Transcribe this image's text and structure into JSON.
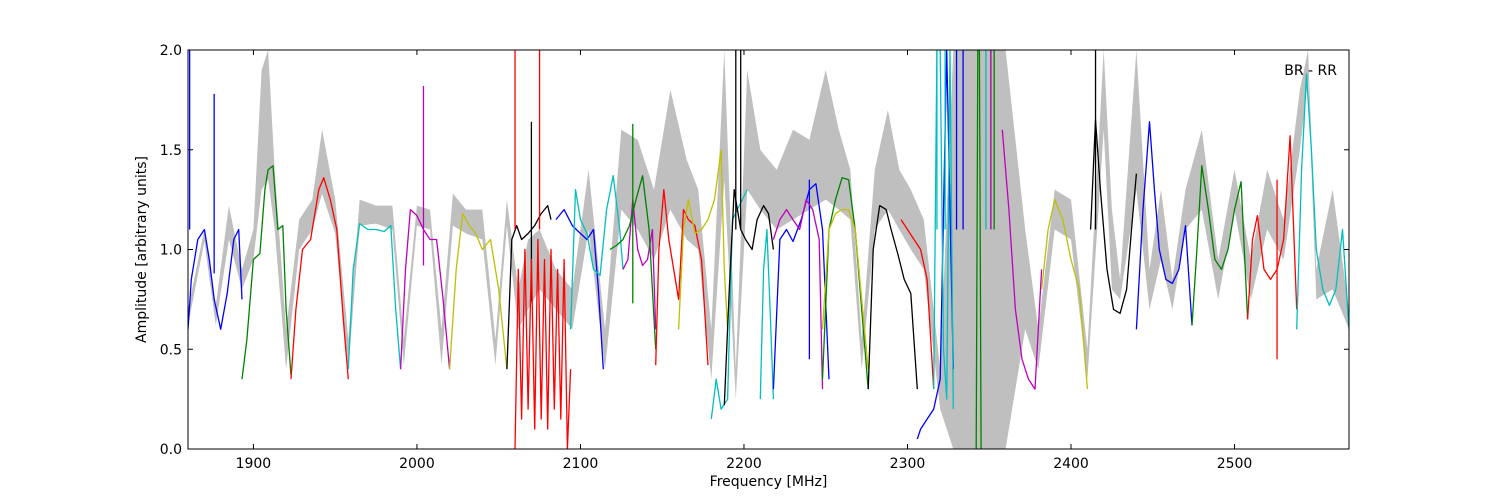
{
  "chart_data": {
    "type": "line",
    "title": "",
    "xlabel": "Frequency [MHz]",
    "ylabel": "Amplitude [arbitrary units]",
    "xlim": [
      1860,
      2570
    ],
    "ylim": [
      0.0,
      2.0
    ],
    "xticks": [
      1900,
      2000,
      2100,
      2200,
      2300,
      2400,
      2500
    ],
    "xtick_labels": [
      "1900",
      "2000",
      "2100",
      "2200",
      "2300",
      "2400",
      "2500"
    ],
    "yticks": [
      0.0,
      0.5,
      1.0,
      1.5,
      2.0
    ],
    "ytick_labels": [
      "0.0",
      "0.5",
      "1.0",
      "1.5",
      "2.0"
    ],
    "grid": false,
    "annotation": "BR - RR",
    "band_color": "#bfbfbf",
    "band": {
      "x": [
        1860,
        1870,
        1877,
        1885,
        1893,
        1900,
        1905,
        1909,
        1913,
        1920,
        1928,
        1936,
        1942,
        1950,
        1958,
        1965,
        1975,
        1985,
        1992,
        2000,
        2008,
        2015,
        2022,
        2030,
        2040,
        2048,
        2055,
        2062,
        2068,
        2075,
        2085,
        2095,
        2105,
        2115,
        2125,
        2135,
        2145,
        2155,
        2165,
        2172,
        2180,
        2188,
        2195,
        2202,
        2210,
        2220,
        2230,
        2240,
        2250,
        2258,
        2265,
        2272,
        2280,
        2288,
        2295,
        2302,
        2310,
        2320,
        2328,
        2340,
        2360,
        2372,
        2380,
        2390,
        2400,
        2410,
        2420,
        2425,
        2430,
        2440,
        2448,
        2455,
        2462,
        2470,
        2480,
        2490,
        2500,
        2510,
        2520,
        2530,
        2540,
        2545,
        2550,
        2560,
        2570
      ],
      "low": [
        0.62,
        1.04,
        0.62,
        1.05,
        0.8,
        0.95,
        1.3,
        1.35,
        1.1,
        0.4,
        1.0,
        1.1,
        1.28,
        1.08,
        0.4,
        1.12,
        1.13,
        1.1,
        0.42,
        1.12,
        1.1,
        0.42,
        1.12,
        1.08,
        1.05,
        0.42,
        1.12,
        0.6,
        0.7,
        0.8,
        0.7,
        0.6,
        1.1,
        0.4,
        1.2,
        1.1,
        0.95,
        1.2,
        1.05,
        1.0,
        0.35,
        1.35,
        0.25,
        1.3,
        1.2,
        1.1,
        1.15,
        1.2,
        1.25,
        1.2,
        1.15,
        0.4,
        1.1,
        1.2,
        1.1,
        1.0,
        0.9,
        0.2,
        0.0,
        0.0,
        0.0,
        0.6,
        0.4,
        1.1,
        1.05,
        0.35,
        1.6,
        0.8,
        0.75,
        1.3,
        0.7,
        0.95,
        0.7,
        1.1,
        1.2,
        0.75,
        1.2,
        0.75,
        1.1,
        0.95,
        1.5,
        1.85,
        0.75,
        0.8,
        0.6
      ],
      "high": [
        0.7,
        1.1,
        0.72,
        1.22,
        0.9,
        1.1,
        1.9,
        2.0,
        1.4,
        0.6,
        1.15,
        1.25,
        1.6,
        1.25,
        0.55,
        1.25,
        1.22,
        1.22,
        0.55,
        1.22,
        1.2,
        0.6,
        1.28,
        1.2,
        1.2,
        0.55,
        1.25,
        0.8,
        1.05,
        1.1,
        0.9,
        0.8,
        1.4,
        0.6,
        1.6,
        1.55,
        1.3,
        1.8,
        1.45,
        1.3,
        0.6,
        2.0,
        0.4,
        1.9,
        1.5,
        1.4,
        1.6,
        1.55,
        1.9,
        1.6,
        1.4,
        0.55,
        1.4,
        1.7,
        1.4,
        1.3,
        1.15,
        0.4,
        2.0,
        2.0,
        2.0,
        1.1,
        0.6,
        1.3,
        1.25,
        0.5,
        2.0,
        1.2,
        0.85,
        2.0,
        0.9,
        1.3,
        0.85,
        1.3,
        1.6,
        0.95,
        1.4,
        0.95,
        1.4,
        1.15,
        1.8,
        2.0,
        0.9,
        1.3,
        0.7
      ]
    },
    "series": [
      {
        "color": "#0000ff",
        "x": [
          1860,
          1862,
          1866,
          1870,
          1873,
          1876,
          1880,
          1884,
          1888,
          1891,
          1893
        ],
        "y": [
          0.6,
          0.85,
          1.05,
          1.1,
          0.95,
          0.75,
          0.6,
          0.78,
          1.05,
          1.1,
          0.75
        ],
        "spikes": [
          [
            1876,
            1.78
          ],
          [
            1861,
            2.0
          ]
        ]
      },
      {
        "color": "#008000",
        "x": [
          1893,
          1896,
          1900,
          1904,
          1907,
          1909,
          1912,
          1915,
          1918,
          1920,
          1923
        ],
        "y": [
          0.35,
          0.55,
          0.95,
          0.98,
          1.3,
          1.4,
          1.42,
          1.1,
          1.12,
          0.7,
          0.37
        ],
        "spikes": []
      },
      {
        "color": "#ff0000",
        "x": [
          1923,
          1926,
          1930,
          1935,
          1940,
          1943,
          1947,
          1951,
          1955,
          1958
        ],
        "y": [
          0.35,
          0.7,
          1.0,
          1.05,
          1.3,
          1.36,
          1.25,
          1.1,
          0.65,
          0.35
        ],
        "spikes": []
      },
      {
        "color": "#00bfbf",
        "x": [
          1958,
          1961,
          1965,
          1970,
          1975,
          1980,
          1984,
          1987,
          1990
        ],
        "y": [
          0.4,
          0.9,
          1.13,
          1.1,
          1.1,
          1.09,
          1.12,
          0.7,
          0.4
        ],
        "spikes": []
      },
      {
        "color": "#bf00bf",
        "x": [
          1990,
          1993,
          1996,
          2000,
          2004,
          2008,
          2012,
          2016,
          2020
        ],
        "y": [
          0.4,
          0.9,
          1.2,
          1.17,
          1.1,
          1.05,
          1.05,
          0.75,
          0.4
        ],
        "spikes": [
          [
            2004,
            1.82
          ]
        ]
      },
      {
        "color": "#bfbf00",
        "x": [
          2020,
          2024,
          2028,
          2032,
          2036,
          2040,
          2045,
          2050,
          2055
        ],
        "y": [
          0.4,
          0.9,
          1.18,
          1.12,
          1.08,
          1.0,
          1.05,
          0.8,
          0.4
        ],
        "spikes": []
      },
      {
        "color": "#000000",
        "x": [
          2055,
          2058,
          2061,
          2064,
          2068,
          2072,
          2076,
          2080,
          2082
        ],
        "y": [
          0.4,
          1.05,
          1.12,
          1.05,
          1.08,
          1.12,
          1.18,
          1.22,
          1.15
        ],
        "spikes": [
          [
            2070,
            1.64
          ]
        ]
      },
      {
        "color": "#ff0000",
        "x": [
          2060,
          2062,
          2064,
          2066,
          2068,
          2070,
          2072,
          2074,
          2076,
          2078,
          2080,
          2082,
          2084,
          2086,
          2088,
          2090,
          2092,
          2094
        ],
        "y": [
          0.0,
          0.9,
          0.15,
          1.0,
          0.2,
          0.95,
          0.1,
          1.05,
          0.15,
          0.95,
          0.1,
          1.0,
          0.2,
          0.9,
          0.15,
          0.95,
          0.0,
          0.4
        ],
        "spikes": [
          [
            2060,
            2.0
          ],
          [
            2075,
            2.0
          ]
        ]
      },
      {
        "color": "#0000ff",
        "x": [
          2085,
          2090,
          2095,
          2100,
          2104,
          2108,
          2111,
          2114
        ],
        "y": [
          1.15,
          1.2,
          1.12,
          1.08,
          1.05,
          1.1,
          0.8,
          0.4
        ],
        "spikes": []
      },
      {
        "color": "#00bfbf",
        "x": [
          2094,
          2097,
          2100,
          2104,
          2108,
          2112,
          2116,
          2120,
          2124,
          2126
        ],
        "y": [
          0.6,
          1.3,
          1.15,
          1.08,
          0.9,
          0.87,
          1.2,
          1.37,
          1.1,
          0.9
        ],
        "spikes": []
      },
      {
        "color": "#bf00bf",
        "x": [
          2126,
          2129,
          2132,
          2135,
          2138,
          2141,
          2144,
          2146
        ],
        "y": [
          0.9,
          0.95,
          1.25,
          1.0,
          0.92,
          0.95,
          1.1,
          0.6
        ],
        "spikes": []
      },
      {
        "color": "#008000",
        "x": [
          2118,
          2122,
          2126,
          2130,
          2134,
          2138,
          2142,
          2146
        ],
        "y": [
          1.0,
          1.02,
          1.05,
          1.12,
          1.25,
          1.37,
          1.1,
          0.5
        ],
        "spikes": [
          [
            2132,
            1.63
          ]
        ]
      },
      {
        "color": "#ff0000",
        "x": [
          2146,
          2148,
          2151,
          2154,
          2157,
          2160,
          2163,
          2166,
          2170,
          2174,
          2178
        ],
        "y": [
          0.42,
          1.0,
          1.3,
          1.05,
          0.9,
          0.75,
          1.2,
          1.15,
          1.12,
          0.95,
          0.42
        ],
        "spikes": []
      },
      {
        "color": "#bfbf00",
        "x": [
          2160,
          2163,
          2166,
          2170,
          2174,
          2178,
          2182,
          2186,
          2188,
          2190
        ],
        "y": [
          0.6,
          1.1,
          1.25,
          1.08,
          1.1,
          1.15,
          1.25,
          1.5,
          0.9,
          0.6
        ],
        "spikes": []
      },
      {
        "color": "#00bfbf",
        "x": [
          2180,
          2183,
          2186,
          2190,
          2193,
          2196,
          2199,
          2202
        ],
        "y": [
          0.15,
          0.35,
          0.2,
          0.25,
          1.15,
          1.2,
          1.25,
          1.3
        ],
        "spikes": []
      },
      {
        "color": "#000000",
        "x": [
          2188,
          2191,
          2194,
          2196,
          2198,
          2201,
          2205,
          2208,
          2212,
          2215,
          2218
        ],
        "y": [
          0.22,
          0.8,
          1.3,
          1.2,
          1.1,
          1.05,
          1.0,
          1.15,
          1.22,
          1.18,
          1.0
        ],
        "spikes": [
          [
            2195,
            2.0
          ],
          [
            2198,
            2.0
          ]
        ]
      },
      {
        "color": "#00bfbf",
        "x": [
          2210,
          2212,
          2214,
          2216,
          2218
        ],
        "y": [
          0.25,
          0.9,
          1.1,
          0.7,
          0.25
        ],
        "spikes": []
      },
      {
        "color": "#0000ff",
        "x": [
          2218,
          2222,
          2226,
          2230,
          2235,
          2240,
          2244,
          2248,
          2252
        ],
        "y": [
          0.3,
          1.05,
          1.1,
          1.04,
          1.15,
          1.3,
          1.33,
          1.1,
          0.35
        ],
        "spikes": [
          [
            2240,
            1.35
          ]
        ]
      },
      {
        "color": "#bf00bf",
        "x": [
          2218,
          2222,
          2226,
          2230,
          2234,
          2238,
          2242,
          2246,
          2248
        ],
        "y": [
          1.05,
          1.15,
          1.2,
          1.15,
          1.1,
          1.25,
          1.2,
          1.05,
          0.3
        ],
        "spikes": []
      },
      {
        "color": "#008000",
        "x": [
          2248,
          2252,
          2256,
          2260,
          2264,
          2268,
          2272,
          2276
        ],
        "y": [
          0.35,
          1.1,
          1.25,
          1.36,
          1.35,
          1.1,
          0.7,
          0.3
        ],
        "spikes": []
      },
      {
        "color": "#bfbf00",
        "x": [
          2248,
          2252,
          2256,
          2260,
          2264,
          2268,
          2272,
          2276
        ],
        "y": [
          0.6,
          1.1,
          1.18,
          1.2,
          1.2,
          1.1,
          0.75,
          0.4
        ],
        "spikes": []
      },
      {
        "color": "#000000",
        "x": [
          2276,
          2279,
          2283,
          2287,
          2290,
          2294,
          2298,
          2302,
          2306
        ],
        "y": [
          0.3,
          1.0,
          1.22,
          1.2,
          1.1,
          0.98,
          0.85,
          0.78,
          0.3
        ],
        "spikes": []
      },
      {
        "color": "#ff0000",
        "x": [
          2296,
          2300,
          2304,
          2308,
          2312,
          2316
        ],
        "y": [
          1.15,
          1.1,
          1.05,
          1.0,
          0.85,
          0.3
        ],
        "spikes": []
      },
      {
        "color": "#0000ff",
        "x": [
          2306,
          2308,
          2312,
          2316,
          2320,
          2324,
          2328
        ],
        "y": [
          0.05,
          0.1,
          0.15,
          0.2,
          0.35,
          2.0,
          0.4
        ],
        "spikes": [
          [
            2330,
            2.0
          ],
          [
            2334,
            2.0
          ]
        ]
      },
      {
        "color": "#00bfbf",
        "x": [
          2316,
          2318,
          2320,
          2322,
          2324,
          2326,
          2328
        ],
        "y": [
          0.3,
          2.0,
          2.0,
          0.5,
          0.25,
          2.0,
          0.2
        ],
        "spikes": [
          [
            2318,
            2.0
          ],
          [
            2323,
            2.0
          ],
          [
            2348,
            2.0
          ]
        ]
      },
      {
        "color": "#008000",
        "x": [
          2342,
          2343,
          2344,
          2345
        ],
        "y": [
          0.0,
          2.0,
          2.0,
          0.0
        ],
        "spikes": [
          [
            2351,
            2.0
          ],
          [
            2353,
            2.0
          ]
        ]
      },
      {
        "color": "#bf00bf",
        "x": [
          2358,
          2362,
          2366,
          2370,
          2374,
          2378,
          2382
        ],
        "y": [
          1.6,
          1.2,
          0.7,
          0.45,
          0.35,
          0.3,
          0.9
        ],
        "spikes": [
          [
            2351,
            2.0
          ]
        ]
      },
      {
        "color": "#bfbf00",
        "x": [
          2382,
          2386,
          2390,
          2395,
          2400,
          2405,
          2410
        ],
        "y": [
          0.8,
          1.1,
          1.25,
          1.15,
          0.95,
          0.8,
          0.3
        ],
        "spikes": []
      },
      {
        "color": "#000000",
        "x": [
          2412,
          2415,
          2418,
          2422,
          2426,
          2430,
          2434,
          2437,
          2440
        ],
        "y": [
          1.1,
          1.65,
          1.3,
          0.9,
          0.7,
          0.68,
          0.8,
          1.1,
          1.38
        ],
        "spikes": [
          [
            2415,
            2.0
          ]
        ]
      },
      {
        "color": "#0000ff",
        "x": [
          2440,
          2444,
          2448,
          2451,
          2454,
          2458,
          2462,
          2466,
          2470,
          2474
        ],
        "y": [
          0.6,
          1.2,
          1.64,
          1.3,
          1.0,
          0.85,
          0.83,
          0.9,
          1.12,
          0.62
        ],
        "spikes": []
      },
      {
        "color": "#008000",
        "x": [
          2474,
          2477,
          2480,
          2484,
          2488,
          2492,
          2496,
          2500,
          2504,
          2508
        ],
        "y": [
          0.62,
          1.0,
          1.42,
          1.2,
          0.95,
          0.9,
          1.0,
          1.2,
          1.34,
          0.65
        ],
        "spikes": []
      },
      {
        "color": "#ff0000",
        "x": [
          2508,
          2511,
          2514,
          2518,
          2522,
          2526,
          2530,
          2534,
          2538
        ],
        "y": [
          0.65,
          1.05,
          1.17,
          0.9,
          0.85,
          0.9,
          1.05,
          1.57,
          0.7
        ],
        "spikes": [
          [
            2526,
            1.35
          ]
        ]
      },
      {
        "color": "#00bfbf",
        "x": [
          2538,
          2541,
          2544,
          2547,
          2550,
          2554,
          2558,
          2562,
          2566,
          2570
        ],
        "y": [
          0.6,
          1.4,
          1.88,
          1.5,
          1.0,
          0.8,
          0.72,
          0.8,
          1.1,
          0.6
        ],
        "spikes": []
      }
    ]
  }
}
